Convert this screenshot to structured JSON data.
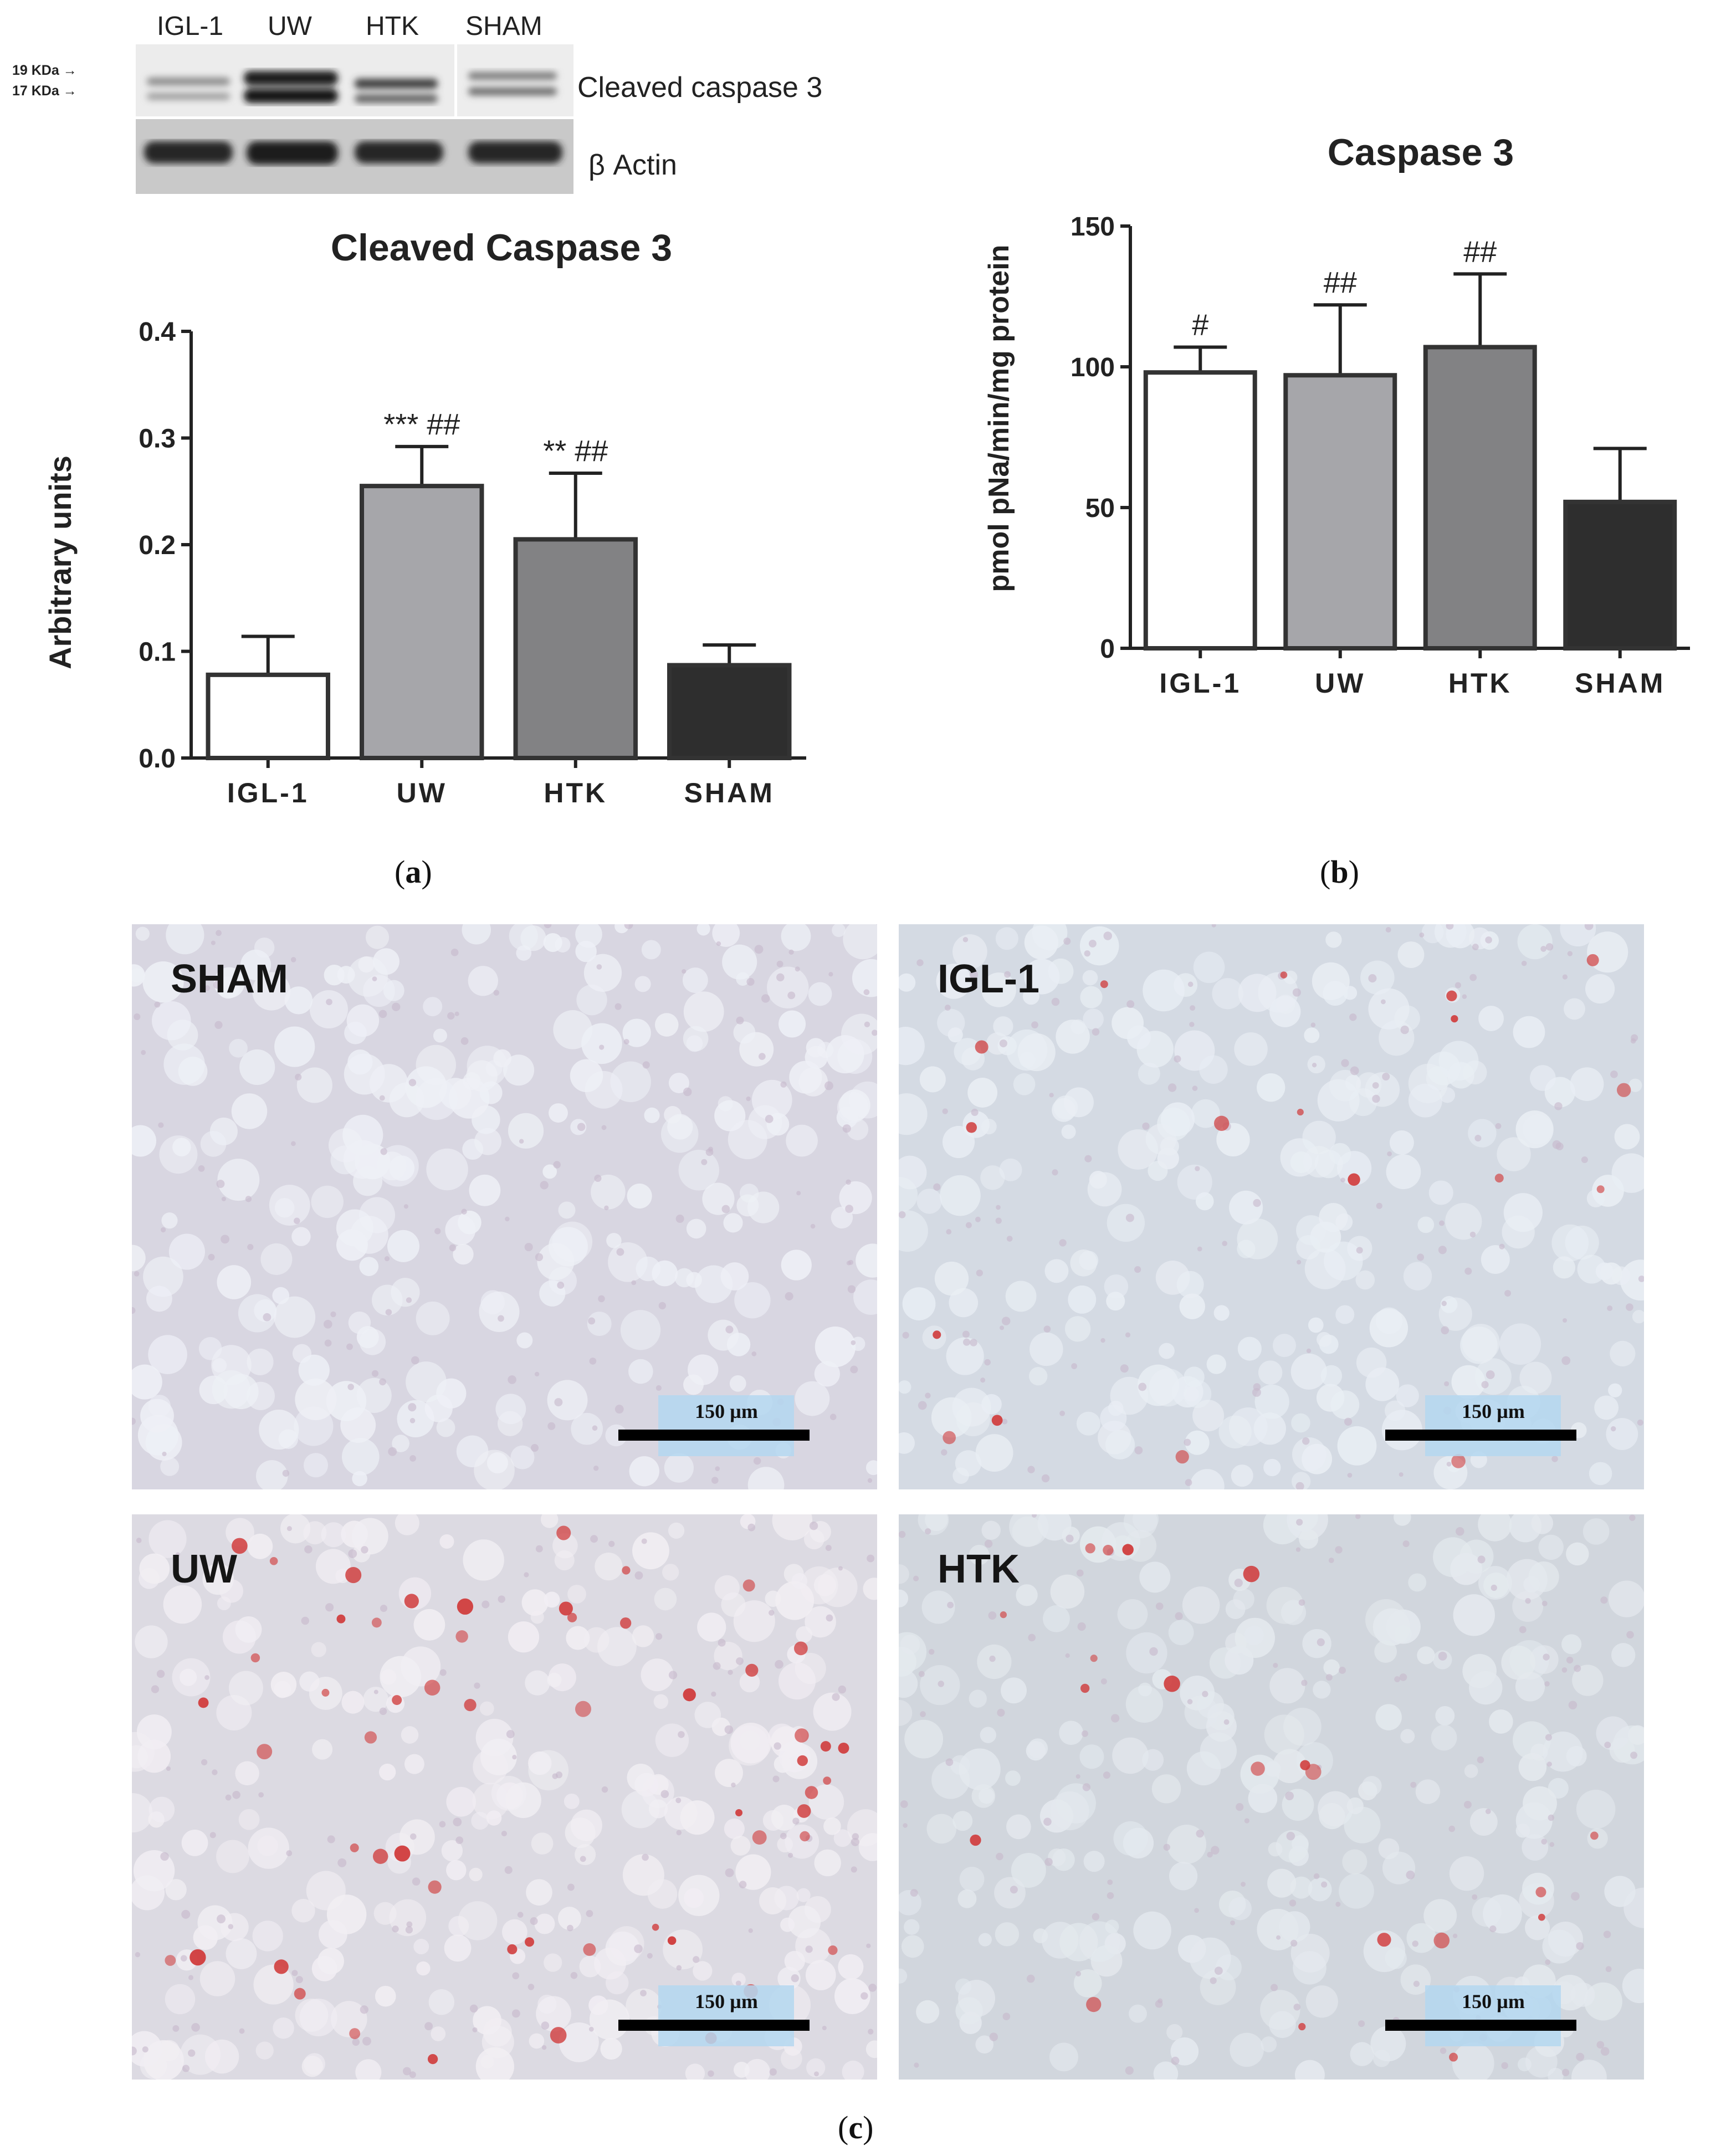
{
  "blot": {
    "lanes": [
      "IGL-1",
      "UW",
      "HTK",
      "SHAM"
    ],
    "kda_19": "19 KDa →",
    "kda_17": "17 KDa →",
    "band_label": "Cleaved caspase 3",
    "loading_label": "β Actin"
  },
  "chart_data": [
    {
      "type": "bar",
      "panel": "(a)",
      "title": "Cleaved Caspase 3",
      "xlabel": "",
      "ylabel": "Arbitrary units",
      "categories": [
        "IGL-1",
        "UW",
        "HTK",
        "SHAM"
      ],
      "values": [
        0.078,
        0.255,
        0.205,
        0.087
      ],
      "errors": [
        0.036,
        0.037,
        0.062,
        0.019
      ],
      "annotations": [
        "",
        "*** ##",
        "** ##",
        ""
      ],
      "bar_colors": [
        "#ffffff",
        "#a6a6aa",
        "#828284",
        "#2e2e2e"
      ],
      "ylim": [
        0,
        0.4
      ],
      "yticks": [
        "0.0",
        "0.1",
        "0.2",
        "0.3",
        "0.4"
      ]
    },
    {
      "type": "bar",
      "panel": "(b)",
      "title": "Caspase 3",
      "xlabel": "",
      "ylabel": "pmol pNa/min/mg protein",
      "categories": [
        "IGL-1",
        "UW",
        "HTK",
        "SHAM"
      ],
      "values": [
        98,
        97,
        107,
        52
      ],
      "errors": [
        9,
        25,
        26,
        19
      ],
      "annotations": [
        "#",
        "##",
        "##",
        ""
      ],
      "bar_colors": [
        "#ffffff",
        "#a6a6aa",
        "#828284",
        "#2e2e2e"
      ],
      "ylim": [
        0,
        150
      ],
      "yticks": [
        "0",
        "50",
        "100",
        "150"
      ]
    }
  ],
  "panel_labels": {
    "a": "a",
    "b": "b",
    "c": "c"
  },
  "micrographs": [
    {
      "label": "SHAM",
      "scale": "150 µm"
    },
    {
      "label": "IGL-1",
      "scale": "150 µm"
    },
    {
      "label": "UW",
      "scale": "150 µm"
    },
    {
      "label": "HTK",
      "scale": "150 µm"
    }
  ]
}
